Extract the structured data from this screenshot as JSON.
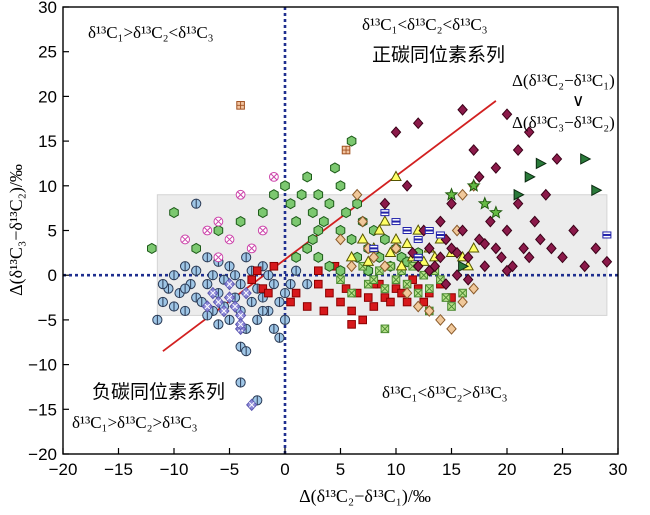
{
  "chart_data": {
    "type": "scatter",
    "xlabel": "Δ(δ¹³C₂−δ¹³C₁)/‰",
    "ylabel": "Δ(δ¹³C₃−δ¹³C₂)/‰",
    "xlim": [
      -20,
      30
    ],
    "ylim": [
      -20,
      30
    ],
    "xticks": [
      "−20",
      "−15",
      "−10",
      "−5",
      "0",
      "5",
      "10",
      "15",
      "20",
      "25",
      "30"
    ],
    "yticks": [
      "−20",
      "−15",
      "−10",
      "−5",
      "0",
      "5",
      "10",
      "15",
      "20",
      "25",
      "30"
    ],
    "annotations": {
      "top_left": "δ¹³C₁>δ¹³C₂<δ¹³C₃",
      "top_right": "δ¹³C₁<δ¹³C₂<δ¹³C₃",
      "positive_series": "正碳同位素系列",
      "negative_series": "负碳同位素系列",
      "bottom_left": "δ¹³C₁>δ¹³C₂>δ¹³C₃",
      "bottom_right": "δ¹³C₁<δ¹³C₂>δ¹³C₃",
      "ratio_top": "Δ(δ¹³C₂−δ¹³C₁)",
      "ratio_op": "∨",
      "ratio_bottom": "Δ(δ¹³C₃−δ¹³C₂)"
    },
    "shaded_region": {
      "x": [
        -11.5,
        29
      ],
      "y": [
        -4.5,
        9
      ]
    },
    "reference_lines": [
      {
        "type": "vertical",
        "x": 0,
        "style": "dotted"
      },
      {
        "type": "horizontal",
        "y": 0,
        "style": "dotted"
      },
      {
        "type": "line",
        "from": [
          -11,
          -8.5
        ],
        "to": [
          19,
          19.5
        ],
        "style": "solid"
      }
    ],
    "series": [
      {
        "color": "#9fc6e6",
        "stroke": "#2a3a55",
        "marker": "circle-bar",
        "points": [
          [
            -11.5,
            -5
          ],
          [
            -11,
            -3
          ],
          [
            -10.5,
            -1.5
          ],
          [
            -10,
            0
          ],
          [
            -10,
            -3.5
          ],
          [
            -9.5,
            -2
          ],
          [
            -9,
            1
          ],
          [
            -9,
            -4
          ],
          [
            -8.5,
            -1
          ],
          [
            -8,
            -2.5
          ],
          [
            -8,
            0.5
          ],
          [
            -7.5,
            -3
          ],
          [
            -7,
            2
          ],
          [
            -7,
            -1
          ],
          [
            -6.5,
            -4
          ],
          [
            -6.5,
            0
          ],
          [
            -6,
            -2
          ],
          [
            -6,
            1.5
          ],
          [
            -5.5,
            -3.5
          ],
          [
            -5.5,
            -0.5
          ],
          [
            -5,
            -5
          ],
          [
            -5,
            1
          ],
          [
            -4.5,
            -2.5
          ],
          [
            -4.5,
            0
          ],
          [
            -4,
            -8
          ],
          [
            -4,
            -4
          ],
          [
            -4,
            -1
          ],
          [
            -3.5,
            -6
          ],
          [
            -3.5,
            2
          ],
          [
            -3,
            -3
          ],
          [
            -3,
            0.5
          ],
          [
            -2.5,
            -5
          ],
          [
            -2.5,
            -1.5
          ],
          [
            -2,
            -2.5
          ],
          [
            -2,
            1
          ],
          [
            -1.5,
            -4
          ],
          [
            -1.5,
            0
          ],
          [
            -1,
            -6
          ],
          [
            -1,
            -1
          ],
          [
            -0.5,
            -3
          ],
          [
            -0.5,
            -7
          ],
          [
            0,
            -2
          ],
          [
            0,
            -5
          ],
          [
            0.5,
            -1
          ],
          [
            -2.5,
            -14
          ],
          [
            -4,
            -12
          ],
          [
            -3.5,
            -8.5
          ],
          [
            -8,
            8
          ],
          [
            -11,
            -1
          ],
          [
            -6,
            -5.5
          ],
          [
            -2,
            -4
          ],
          [
            -9,
            -1.5
          ],
          [
            -7,
            -4.5
          ],
          [
            1,
            0.5
          ],
          [
            2,
            -1
          ]
        ]
      },
      {
        "color": "#8e8ad8",
        "stroke": "#5a56b0",
        "marker": "diamond-cross",
        "points": [
          [
            -6,
            -3
          ],
          [
            -5.5,
            -4
          ],
          [
            -5,
            -2.5
          ],
          [
            -4.5,
            -3.5
          ],
          [
            -4,
            -4.5
          ],
          [
            -5,
            -1
          ],
          [
            -3.5,
            -2
          ],
          [
            -4,
            -6
          ],
          [
            -6.5,
            -2
          ],
          [
            -3,
            -14.5
          ],
          [
            -4,
            -5.5
          ],
          [
            -7,
            -3.5
          ]
        ]
      },
      {
        "color": "#d7191c",
        "stroke": "#8a0000",
        "marker": "square",
        "points": [
          [
            -3,
            -0.5
          ],
          [
            -2.5,
            0.5
          ],
          [
            -2,
            -1.5
          ],
          [
            -1,
            1
          ],
          [
            0.5,
            -3
          ],
          [
            1,
            -2
          ],
          [
            2,
            -3.5
          ],
          [
            3,
            -1
          ],
          [
            3.5,
            -4
          ],
          [
            4,
            -2
          ],
          [
            5,
            -3
          ],
          [
            5.5,
            -1.5
          ],
          [
            6,
            -4
          ],
          [
            6.5,
            -2
          ],
          [
            7,
            -5
          ],
          [
            7.5,
            -2.5
          ],
          [
            8,
            -3.5
          ],
          [
            8.5,
            -1
          ],
          [
            9,
            -2.5
          ],
          [
            9.5,
            -3
          ],
          [
            10,
            -1.5
          ],
          [
            10.5,
            -2
          ],
          [
            11,
            -3
          ],
          [
            11.5,
            -0.5
          ],
          [
            12,
            -1.5
          ],
          [
            13,
            -2
          ],
          [
            14,
            -1
          ],
          [
            15,
            -2.5
          ],
          [
            6,
            -5.5
          ],
          [
            3,
            0.5
          ],
          [
            4.5,
            1
          ],
          [
            -1.5,
            -2
          ],
          [
            8,
            -1
          ],
          [
            12.5,
            -3
          ]
        ]
      },
      {
        "color": "#7cc870",
        "stroke": "#1c5a18",
        "marker": "hexagon",
        "points": [
          [
            -12,
            3
          ],
          [
            -10,
            7
          ],
          [
            -8,
            3
          ],
          [
            -6,
            5
          ],
          [
            -4,
            6
          ],
          [
            -2,
            7
          ],
          [
            -1,
            9
          ],
          [
            0,
            10
          ],
          [
            0.5,
            8
          ],
          [
            1,
            6
          ],
          [
            1.5,
            9
          ],
          [
            2,
            11
          ],
          [
            2.5,
            7
          ],
          [
            3,
            5
          ],
          [
            3,
            9
          ],
          [
            3.5,
            6
          ],
          [
            4,
            8
          ],
          [
            4.5,
            12
          ],
          [
            5,
            5
          ],
          [
            5,
            10
          ],
          [
            5.5,
            7
          ],
          [
            6,
            4
          ],
          [
            6,
            15
          ],
          [
            6.5,
            8
          ],
          [
            7,
            6
          ],
          [
            7.5,
            3
          ],
          [
            8,
            5
          ],
          [
            8.5,
            2
          ],
          [
            9,
            4
          ],
          [
            9.5,
            1
          ],
          [
            10,
            3
          ],
          [
            10.5,
            2
          ],
          [
            11,
            1.5
          ],
          [
            12,
            2.5
          ],
          [
            2,
            3
          ],
          [
            3,
            2
          ],
          [
            4,
            1
          ],
          [
            5,
            0.5
          ],
          [
            1,
            2
          ],
          [
            2.5,
            4
          ],
          [
            6.5,
            2
          ],
          [
            7.5,
            0.5
          ]
        ]
      },
      {
        "color": "#b6e08a",
        "stroke": "#4a8a30",
        "marker": "square-cross",
        "points": [
          [
            5,
            -0.5
          ],
          [
            6,
            -2
          ],
          [
            7,
            1
          ],
          [
            7.5,
            -1
          ],
          [
            8,
            -0.5
          ],
          [
            8.5,
            0.5
          ],
          [
            9,
            -1.5
          ],
          [
            9.5,
            1
          ],
          [
            10,
            -0.5
          ],
          [
            10.5,
            0.5
          ],
          [
            11,
            -1
          ],
          [
            11.5,
            1
          ],
          [
            12,
            -2
          ],
          [
            12.5,
            0
          ],
          [
            13,
            -1.5
          ],
          [
            13.5,
            0.5
          ],
          [
            14,
            -0.5
          ],
          [
            15,
            -3.5
          ],
          [
            9,
            -6
          ],
          [
            16,
            -2
          ],
          [
            14.5,
            -2.5
          ],
          [
            13,
            -4
          ]
        ]
      },
      {
        "color": "#ffff66",
        "stroke": "#555500",
        "marker": "triangle",
        "points": [
          [
            6,
            2
          ],
          [
            7,
            4
          ],
          [
            8,
            3
          ],
          [
            8.5,
            5
          ],
          [
            9,
            6
          ],
          [
            9.5,
            2.5
          ],
          [
            10,
            4
          ],
          [
            10.5,
            1
          ],
          [
            11,
            3.5
          ],
          [
            11.5,
            2
          ],
          [
            12,
            5
          ],
          [
            12.5,
            1.5
          ],
          [
            13,
            3
          ],
          [
            13.5,
            2
          ],
          [
            14,
            4
          ],
          [
            15,
            2.5
          ],
          [
            16,
            2
          ],
          [
            17,
            3
          ],
          [
            16.5,
            1
          ],
          [
            7.5,
            1.5
          ],
          [
            10,
            11
          ]
        ]
      },
      {
        "color": "#f0c89a",
        "stroke": "#8a5a2a",
        "marker": "diamond",
        "points": [
          [
            5,
            4
          ],
          [
            6,
            1
          ],
          [
            6.5,
            9
          ],
          [
            7,
            6
          ],
          [
            7.5,
            3
          ],
          [
            8,
            2
          ],
          [
            9,
            1
          ],
          [
            10,
            3
          ],
          [
            11,
            -2
          ],
          [
            12,
            -3.5
          ],
          [
            13,
            -4
          ],
          [
            14,
            -5
          ],
          [
            15,
            -6
          ],
          [
            16,
            -3
          ],
          [
            17,
            -1.5
          ],
          [
            15.5,
            5
          ],
          [
            16,
            9
          ],
          [
            17,
            10
          ]
        ]
      },
      {
        "color": "#8b1a4a",
        "stroke": "#3a0018",
        "marker": "diamond",
        "points": [
          [
            9,
            8
          ],
          [
            10,
            16
          ],
          [
            11,
            10
          ],
          [
            12,
            17
          ],
          [
            12.5,
            5
          ],
          [
            13,
            3
          ],
          [
            13.5,
            1
          ],
          [
            14,
            6
          ],
          [
            14,
            2
          ],
          [
            14.5,
            -1
          ],
          [
            15,
            8
          ],
          [
            15,
            3
          ],
          [
            15.5,
            0
          ],
          [
            16,
            5
          ],
          [
            16,
            18.5
          ],
          [
            16.5,
            2
          ],
          [
            17,
            14
          ],
          [
            17.5,
            4
          ],
          [
            18,
            1
          ],
          [
            18.5,
            6
          ],
          [
            19,
            3
          ],
          [
            19.5,
            2
          ],
          [
            20,
            5
          ],
          [
            20.5,
            1
          ],
          [
            21,
            8
          ],
          [
            21.5,
            3
          ],
          [
            22,
            2
          ],
          [
            22.5,
            6
          ],
          [
            23,
            4
          ],
          [
            24,
            3
          ],
          [
            25,
            2
          ],
          [
            26,
            5
          ],
          [
            27,
            1
          ],
          [
            28,
            3
          ],
          [
            29,
            1.5
          ],
          [
            20,
            18
          ],
          [
            22,
            16
          ],
          [
            19,
            12
          ],
          [
            23.5,
            9
          ],
          [
            17.5,
            11
          ],
          [
            21,
            14
          ],
          [
            24.5,
            13
          ],
          [
            11.5,
            2.5
          ],
          [
            12,
            1
          ],
          [
            13,
            0.5
          ],
          [
            14.5,
            4
          ],
          [
            15.5,
            2.5
          ],
          [
            16.5,
            -0.5
          ],
          [
            18,
            3.5
          ],
          [
            20,
            0.5
          ]
        ]
      },
      {
        "color": "#2a7a3a",
        "stroke": "#0a2a10",
        "marker": "triangle-right",
        "points": [
          [
            22,
            11
          ],
          [
            23,
            12.5
          ],
          [
            27,
            13
          ],
          [
            21,
            9
          ],
          [
            28,
            9.5
          ],
          [
            16,
            1
          ]
        ]
      },
      {
        "color": "#66bb44",
        "stroke": "#225a10",
        "marker": "star",
        "points": [
          [
            15,
            9
          ],
          [
            17,
            10
          ],
          [
            19,
            7
          ],
          [
            18,
            8
          ]
        ]
      },
      {
        "color": "#ffffff",
        "stroke": "#2222aa",
        "marker": "square-bar",
        "points": [
          [
            9,
            7
          ],
          [
            10,
            6
          ],
          [
            11,
            5
          ],
          [
            12,
            4
          ],
          [
            13,
            5
          ],
          [
            14,
            4.5
          ],
          [
            29,
            4.5
          ],
          [
            8,
            3
          ],
          [
            12,
            2
          ]
        ]
      },
      {
        "color": "#ffffff",
        "stroke": "#cc44aa",
        "marker": "circle-cross",
        "points": [
          [
            -9,
            4
          ],
          [
            -7,
            5
          ],
          [
            -6,
            6
          ],
          [
            -5,
            4
          ],
          [
            -4,
            9
          ],
          [
            -2,
            5
          ],
          [
            -1,
            11
          ],
          [
            -3,
            3
          ],
          [
            -6,
            2
          ]
        ]
      },
      {
        "color": "#f2c4a0",
        "stroke": "#a05020",
        "marker": "square-plus",
        "points": [
          [
            -4,
            19
          ],
          [
            5.5,
            14
          ]
        ]
      }
    ]
  }
}
